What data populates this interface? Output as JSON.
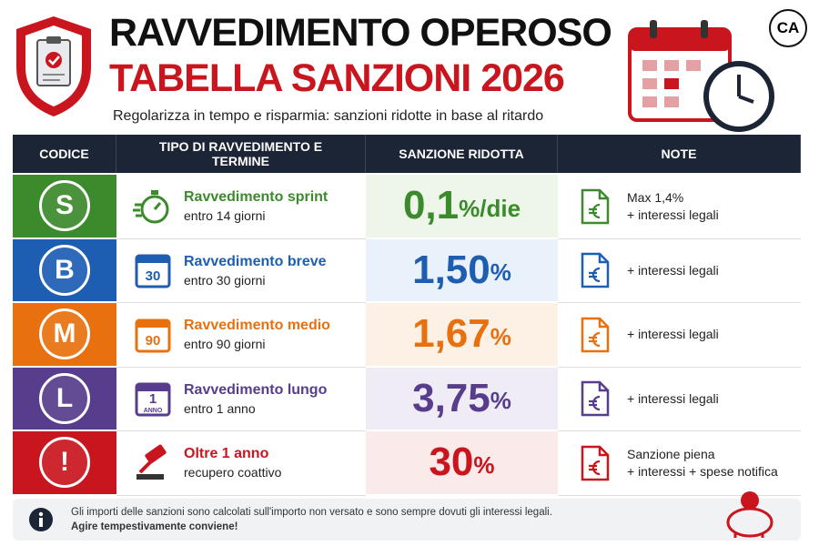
{
  "header": {
    "title_line1": "RAVVEDIMENTO OPEROSO",
    "title_line2": "TABELLA SANZIONI 2026",
    "subtitle": "Regolarizza in tempo e risparmia: sanzioni ridotte in base al ritardo",
    "logo": "CA"
  },
  "table": {
    "columns": [
      "CODICE",
      "TIPO DI RAVVEDIMENTO E TERMINE",
      "SANZIONE RIDOTTA",
      "NOTE"
    ],
    "rows": [
      {
        "code": "S",
        "color": "#3b8a2c",
        "tint": "#eef6ea",
        "icon": "stopwatch",
        "title": "Ravvedimento sprint",
        "term": "entro 14 giorni",
        "rate": "0,1",
        "unit": "%/die",
        "note": [
          "Max 1,4%",
          "+ interessi legali"
        ]
      },
      {
        "code": "B",
        "color": "#1d5eb3",
        "tint": "#e9f1fb",
        "icon": "calendar",
        "icon_text": [
          "30"
        ],
        "title": "Ravvedimento breve",
        "term": "entro 30 giorni",
        "rate": "1,50",
        "unit": "%",
        "note": [
          "+ interessi legali"
        ]
      },
      {
        "code": "M",
        "color": "#e8700e",
        "tint": "#fdf1e6",
        "icon": "calendar",
        "icon_text": [
          "90"
        ],
        "title": "Ravvedimento medio",
        "term": "entro 90 giorni",
        "rate": "1,67",
        "unit": "%",
        "note": [
          "+ interessi legali"
        ]
      },
      {
        "code": "L",
        "color": "#573d8c",
        "tint": "#f0ecf6",
        "icon": "calendar",
        "icon_text": [
          "1",
          "ANNO"
        ],
        "title": "Ravvedimento lungo",
        "term": "entro 1 anno",
        "rate": "3,75",
        "unit": "%",
        "note": [
          "+ interessi legali"
        ]
      },
      {
        "code": "!",
        "color": "#c9161e",
        "tint": "#fbeaea",
        "icon": "gavel",
        "title": "Oltre 1 anno",
        "term": "recupero coattivo",
        "rate": "30",
        "unit": "%",
        "note": [
          "Sanzione piena",
          "+ interessi + spese notifica"
        ]
      }
    ]
  },
  "footer": {
    "text": "Gli importi delle sanzioni sono calcolati sull'importo non versato e sono sempre dovuti gli interessi legali.",
    "emphasis": "Agire tempestivamente conviene!"
  }
}
